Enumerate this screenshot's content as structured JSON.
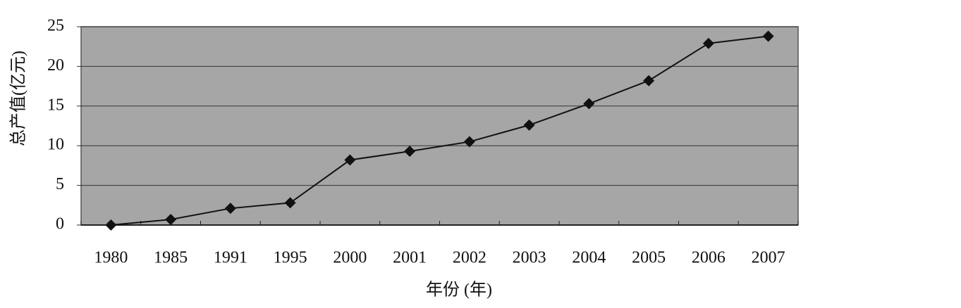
{
  "chart_data": {
    "type": "line",
    "x_label": "年份 (年)",
    "y_label": "总产值(亿元)",
    "categories": [
      "1980",
      "1985",
      "1991",
      "1995",
      "2000",
      "2001",
      "2002",
      "2003",
      "2004",
      "2005",
      "2006",
      "2007"
    ],
    "values": [
      0,
      0.7,
      2.1,
      2.8,
      8.2,
      9.3,
      10.5,
      12.6,
      15.3,
      18.2,
      22.9,
      23.8
    ],
    "color": "#111111",
    "background": "#a6a6a6",
    "ylim": [
      0,
      25
    ],
    "yticks": [
      0,
      5,
      10,
      15,
      20,
      25
    ],
    "grid": true
  }
}
